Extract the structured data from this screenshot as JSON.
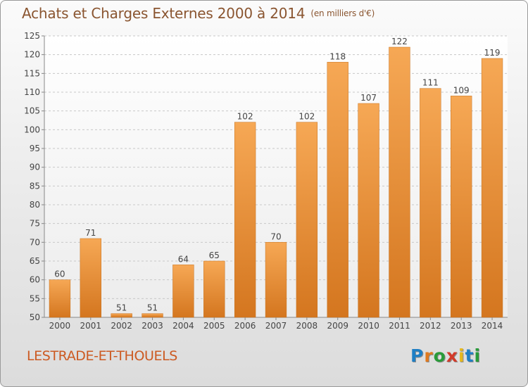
{
  "chart_data": {
    "type": "bar",
    "title": "Achats et Charges Externes 2000 à 2014",
    "subtitle": "(en milliers d'€)",
    "categories": [
      "2000",
      "2001",
      "2002",
      "2003",
      "2004",
      "2005",
      "2006",
      "2007",
      "2008",
      "2009",
      "2010",
      "2011",
      "2012",
      "2013",
      "2014"
    ],
    "values": [
      60,
      71,
      51,
      51,
      64,
      65,
      102,
      70,
      102,
      118,
      107,
      122,
      111,
      109,
      119
    ],
    "xlabel": "",
    "ylabel": "",
    "ylim": [
      50,
      125
    ],
    "yticks": [
      50,
      55,
      60,
      65,
      70,
      75,
      80,
      85,
      90,
      95,
      100,
      105,
      110,
      115,
      120,
      125
    ],
    "grid": true,
    "bar_color_top": "#f6a855",
    "bar_color_bottom": "#d4761f"
  },
  "footer": {
    "commune": "LESTRADE-ET-THOUELS",
    "logo_letters": [
      "P",
      "r",
      "o",
      "x",
      "i",
      "t",
      "i"
    ]
  }
}
